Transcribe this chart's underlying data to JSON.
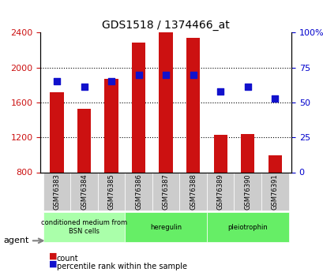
{
  "title": "GDS1518 / 1374466_at",
  "categories": [
    "GSM76383",
    "GSM76384",
    "GSM76385",
    "GSM76386",
    "GSM76387",
    "GSM76388",
    "GSM76389",
    "GSM76390",
    "GSM76391"
  ],
  "counts": [
    1720,
    1530,
    1870,
    2290,
    2400,
    2340,
    1230,
    1240,
    990
  ],
  "percentiles": [
    65,
    61,
    65,
    70,
    70,
    70,
    58,
    61,
    53
  ],
  "ylim_left": [
    800,
    2400
  ],
  "ylim_right": [
    0,
    100
  ],
  "yticks_left": [
    800,
    1200,
    1600,
    2000,
    2400
  ],
  "yticks_right": [
    0,
    25,
    50,
    75,
    100
  ],
  "bar_color": "#cc1111",
  "dot_color": "#1111cc",
  "bar_width": 0.5,
  "agent_groups": [
    {
      "label": "conditioned medium from\nBSN cells",
      "start": 0,
      "end": 3,
      "color": "#aaffaa"
    },
    {
      "label": "heregulin",
      "start": 3,
      "end": 6,
      "color": "#66ee66"
    },
    {
      "label": "pleiotrophin",
      "start": 6,
      "end": 9,
      "color": "#66ee66"
    }
  ],
  "xlabel_color": "#cc1111",
  "ylabel_left_color": "#cc1111",
  "ylabel_right_color": "#0000cc",
  "grid_color": "#000000",
  "bg_color": "#ffffff",
  "tick_area_color": "#cccccc"
}
